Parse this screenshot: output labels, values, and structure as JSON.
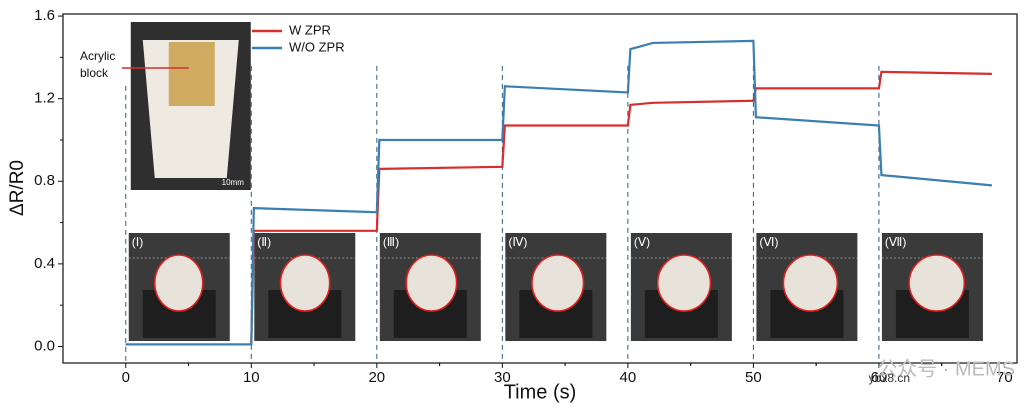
{
  "chart_data": {
    "type": "line",
    "y_label": "ΔR/R0",
    "x_label": "Time (s)",
    "x": [
      0,
      10,
      10.2,
      20,
      20.2,
      30,
      30.2,
      40,
      40.2,
      42,
      50,
      50.2,
      60,
      60.2,
      69
    ],
    "series": [
      {
        "name": "W ZPR",
        "color": "#d62f2f",
        "values": [
          0.01,
          0.01,
          0.56,
          0.56,
          0.86,
          0.87,
          1.07,
          1.07,
          1.17,
          1.18,
          1.19,
          1.25,
          1.25,
          1.33,
          1.32
        ]
      },
      {
        "name": "W/O ZPR",
        "color": "#3a7fb0",
        "values": [
          0.01,
          0.01,
          0.67,
          0.65,
          1.0,
          1.0,
          1.26,
          1.23,
          1.44,
          1.47,
          1.48,
          1.11,
          1.07,
          0.83,
          0.78
        ]
      }
    ],
    "xlim": [
      -5,
      71
    ],
    "ylim": [
      -0.08,
      1.61
    ],
    "xticks": [
      0,
      10,
      20,
      30,
      40,
      50,
      60,
      70
    ],
    "yticks": [
      {
        "value": 0,
        "label": "0.0"
      },
      0.4,
      0.8,
      1.2,
      1.6
    ],
    "phase_labels": [
      "(Ⅰ)",
      "(Ⅱ)",
      "(Ⅲ)",
      "(Ⅳ)",
      "(Ⅴ)",
      "(Ⅵ)",
      "(Ⅶ)"
    ],
    "inset_annotation": [
      "Acrylic",
      "block"
    ],
    "inset_scale": "10mm",
    "watermark": [
      "公众号 · MEMS",
      "ybx8.cn"
    ]
  }
}
